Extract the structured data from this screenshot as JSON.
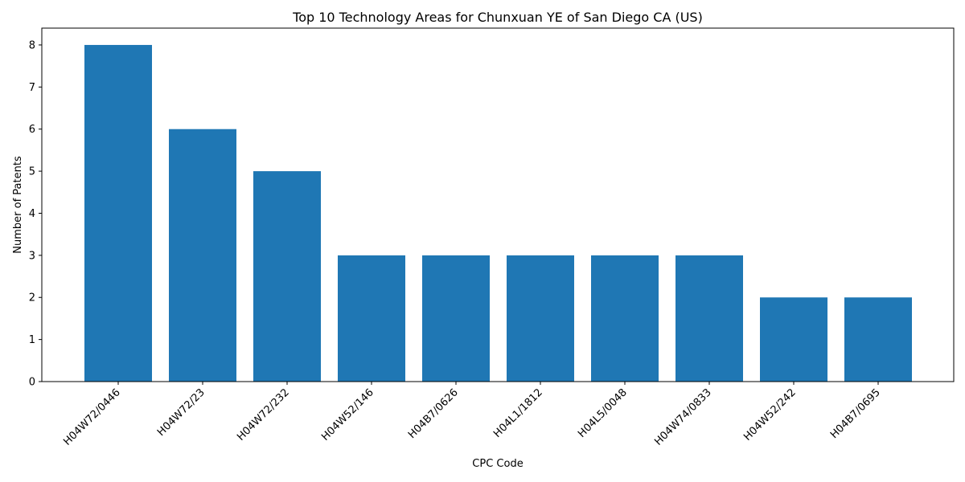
{
  "chart_data": {
    "type": "bar",
    "title": "Top 10 Technology Areas for Chunxuan YE of San Diego CA (US)",
    "xlabel": "CPC Code",
    "ylabel": "Number of Patents",
    "categories": [
      "H04W72/0446",
      "H04W72/23",
      "H04W72/232",
      "H04W52/146",
      "H04B7/0626",
      "H04L1/1812",
      "H04L5/0048",
      "H04W74/0833",
      "H04W52/242",
      "H04B7/0695"
    ],
    "values": [
      8,
      6,
      5,
      3,
      3,
      3,
      3,
      3,
      2,
      2
    ],
    "ylim": [
      0,
      8.4
    ],
    "yticks": [
      0,
      1,
      2,
      3,
      4,
      5,
      6,
      7,
      8
    ],
    "grid": false,
    "bar_color": "#1f77b4"
  }
}
